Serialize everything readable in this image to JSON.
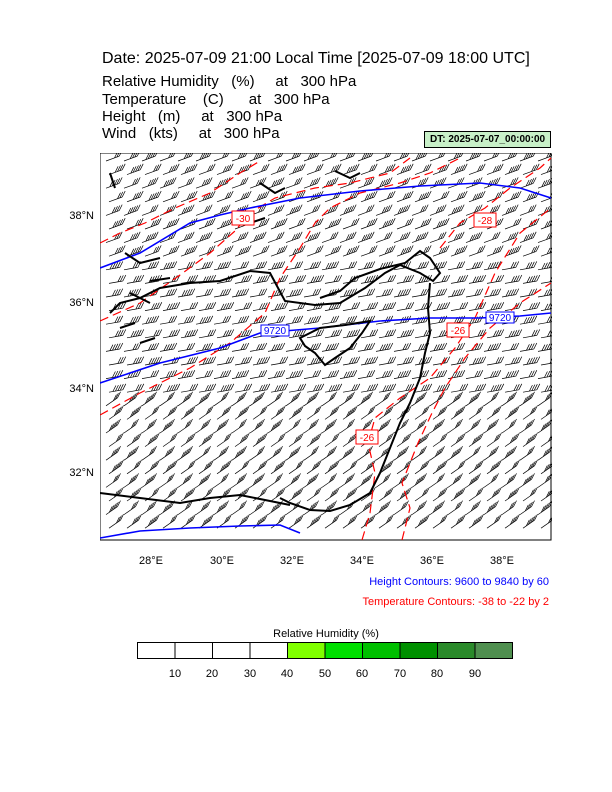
{
  "header": {
    "title": "Date: 2025-07-09  21:00 Local Time [2025-07-09  18:00 UTC]",
    "fields": [
      {
        "name": "Relative Humidity",
        "unit": "(%)",
        "at": "at",
        "level": "300 hPa"
      },
      {
        "name": "Temperature",
        "unit": "(C)",
        "at": "at",
        "level": "300 hPa"
      },
      {
        "name": "Height",
        "unit": "(m)",
        "at": "at",
        "level": "300 hPa"
      },
      {
        "name": "Wind",
        "unit": "(kts)",
        "at": "at",
        "level": "300 hPa"
      }
    ],
    "dt_badge": "DT: 2025-07-07_00:00:00"
  },
  "map": {
    "lat_labels": [
      "38°N",
      "36°N",
      "34°N",
      "32°N"
    ],
    "lon_labels": [
      "28°E",
      "30°E",
      "32°E",
      "34°E",
      "36°E",
      "38°E"
    ],
    "height_contour_labels": [
      "9720",
      "9720"
    ],
    "temperature_contour_labels": [
      "-30",
      "-28",
      "-26",
      "-26"
    ],
    "colors": {
      "height_contour": "#0000ff",
      "temperature_contour": "#ff0000",
      "coastline": "#000000",
      "wind_barb": "#000000"
    }
  },
  "legends": {
    "height": "Height Contours: 9600 to 9840 by 60",
    "temperature": "Temperature Contours: -38 to -22 by 2"
  },
  "colorbar": {
    "title": "Relative Humidity  (%)",
    "ticks": [
      "10",
      "20",
      "30",
      "40",
      "50",
      "60",
      "70",
      "80",
      "90"
    ],
    "colors": [
      "#ffffff",
      "#ffffff",
      "#ffffff",
      "#ffffff",
      "#80ff00",
      "#00e000",
      "#00c000",
      "#009000",
      "#2a8a2a",
      "#4f8f4f"
    ]
  }
}
